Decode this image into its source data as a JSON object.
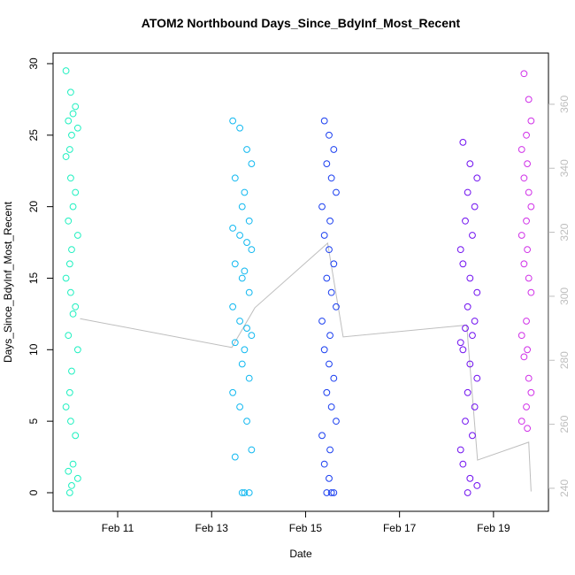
{
  "chart_data": {
    "type": "scatter",
    "title": "ATOM2 Northbound Days_Since_BdyInf_Most_Recent",
    "x_label": "Date",
    "y_label": "Days_Since_BdyInf_Most_Recent",
    "xlim": [
      9.625,
      20.17
    ],
    "ylim": [
      -1.3,
      30.74
    ],
    "y2lim": [
      232.8,
      376
    ],
    "xticks": [
      {
        "value": 11,
        "label": "Feb 11"
      },
      {
        "value": 13,
        "label": "Feb 13"
      },
      {
        "value": 15,
        "label": "Feb 15"
      },
      {
        "value": 17,
        "label": "Feb 17"
      },
      {
        "value": 19,
        "label": "Feb 19"
      }
    ],
    "yticks": [
      0,
      5,
      10,
      15,
      20,
      25,
      30
    ],
    "y2ticks": [
      240,
      260,
      280,
      300,
      320,
      340,
      360
    ],
    "y2_color": "#bebebe",
    "series": [
      {
        "color": "#1ef0c0",
        "x": [
          9.9,
          10.0,
          10.1,
          10.05,
          9.95,
          10.15,
          10.02,
          9.98,
          9.9,
          10.0,
          10.1,
          10.05,
          9.95,
          10.15,
          10.02,
          9.98,
          9.9,
          10.0,
          10.1,
          10.05,
          9.95,
          10.15,
          10.02,
          9.98,
          9.9,
          10.0,
          10.1,
          10.05,
          9.95,
          10.15,
          10.02,
          9.98
        ],
        "values": [
          29.5,
          28,
          27,
          26.5,
          26,
          25.5,
          25,
          24,
          23.5,
          22,
          21,
          20,
          19,
          18,
          17,
          16,
          15,
          14,
          13,
          12.5,
          11,
          10,
          8.5,
          7,
          6,
          5,
          4,
          2,
          1.5,
          1,
          0.5,
          0
        ]
      },
      {
        "color": "#10b8f0",
        "x": [
          13.45,
          13.6,
          13.75,
          13.85,
          13.5,
          13.7,
          13.65,
          13.8,
          13.45,
          13.6,
          13.75,
          13.85,
          13.5,
          13.7,
          13.65,
          13.8,
          13.45,
          13.6,
          13.75,
          13.85,
          13.5,
          13.7,
          13.65,
          13.8,
          13.45,
          13.6,
          13.75,
          13.85,
          13.5,
          13.7,
          13.65,
          13.8
        ],
        "values": [
          26,
          25.5,
          24,
          23,
          22,
          21,
          20,
          19,
          18.5,
          18,
          17.5,
          17,
          16,
          15.5,
          15,
          14,
          13,
          12,
          11.5,
          11,
          10.5,
          10,
          9,
          8,
          7,
          6,
          5,
          3,
          2.5,
          0,
          0,
          0
        ]
      },
      {
        "color": "#1a3ef0",
        "x": [
          15.4,
          15.5,
          15.6,
          15.45,
          15.55,
          15.65,
          15.35,
          15.52,
          15.4,
          15.5,
          15.6,
          15.45,
          15.55,
          15.65,
          15.35,
          15.52,
          15.4,
          15.5,
          15.6,
          15.45,
          15.55,
          15.65,
          15.35,
          15.52,
          15.4,
          15.5,
          15.6,
          15.45,
          15.55
        ],
        "values": [
          26,
          25,
          24,
          23,
          22,
          21,
          20,
          19,
          18,
          17,
          16,
          15,
          14,
          13,
          12,
          11,
          10,
          9,
          8,
          7,
          6,
          5,
          4,
          3,
          2,
          1,
          0,
          0,
          0
        ]
      },
      {
        "color": "#7010f0",
        "x": [
          18.35,
          18.5,
          18.65,
          18.45,
          18.6,
          18.4,
          18.55,
          18.3,
          18.35,
          18.5,
          18.65,
          18.45,
          18.6,
          18.4,
          18.55,
          18.3,
          18.35,
          18.5,
          18.65,
          18.45,
          18.6,
          18.4,
          18.55,
          18.3,
          18.35,
          18.5,
          18.65,
          18.45
        ],
        "values": [
          24.5,
          23,
          22,
          21,
          20,
          19,
          18,
          17,
          16,
          15,
          14,
          13,
          12,
          11.5,
          11,
          10.5,
          10,
          9,
          8,
          7,
          6,
          5,
          4,
          3,
          2,
          1,
          0.5,
          0
        ]
      },
      {
        "color": "#d030e8",
        "x": [
          19.65,
          19.75,
          19.8,
          19.7,
          19.6,
          19.72,
          19.65,
          19.75,
          19.8,
          19.7,
          19.6,
          19.72,
          19.65,
          19.75,
          19.8,
          19.7,
          19.6,
          19.72,
          19.65,
          19.75,
          19.8,
          19.7,
          19.6,
          19.72
        ],
        "values": [
          29.3,
          27.5,
          26,
          25,
          24,
          23,
          22,
          21,
          20,
          19,
          18,
          17,
          16,
          15,
          14,
          12,
          11,
          10,
          9.5,
          8,
          7,
          6,
          5,
          4.5
        ]
      },
      {
        "color": "#bebebe",
        "axis": "y2",
        "line": true,
        "x": [
          10.2,
          13.43,
          13.92,
          15.47,
          15.8,
          18.43,
          18.66,
          19.75,
          19.8
        ],
        "values": [
          293,
          284,
          296.4,
          316.6,
          287.3,
          291,
          248.8,
          254.4,
          239
        ]
      }
    ]
  }
}
